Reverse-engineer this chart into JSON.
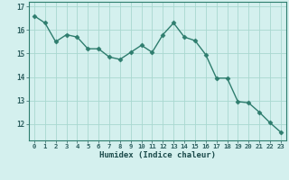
{
  "x": [
    0,
    1,
    2,
    3,
    4,
    5,
    6,
    7,
    8,
    9,
    10,
    11,
    12,
    13,
    14,
    15,
    16,
    17,
    18,
    19,
    20,
    21,
    22,
    23
  ],
  "y": [
    16.6,
    16.3,
    15.5,
    15.8,
    15.7,
    15.2,
    15.2,
    14.85,
    14.75,
    15.05,
    15.35,
    15.05,
    15.8,
    16.3,
    15.7,
    15.55,
    14.95,
    13.95,
    13.95,
    12.95,
    12.9,
    12.5,
    12.05,
    11.65
  ],
  "xlabel": "Humidex (Indice chaleur)",
  "xlim": [
    -0.5,
    23.5
  ],
  "ylim": [
    11.3,
    17.2
  ],
  "yticks": [
    12,
    13,
    14,
    15,
    16,
    17
  ],
  "xticks": [
    0,
    1,
    2,
    3,
    4,
    5,
    6,
    7,
    8,
    9,
    10,
    11,
    12,
    13,
    14,
    15,
    16,
    17,
    18,
    19,
    20,
    21,
    22,
    23
  ],
  "line_color": "#2e7d6e",
  "marker_color": "#2e7d6e",
  "bg_color": "#d4f0ee",
  "grid_color": "#a8d8d0",
  "tick_label_color": "#2e6060",
  "xlabel_color": "#1a4a4a"
}
